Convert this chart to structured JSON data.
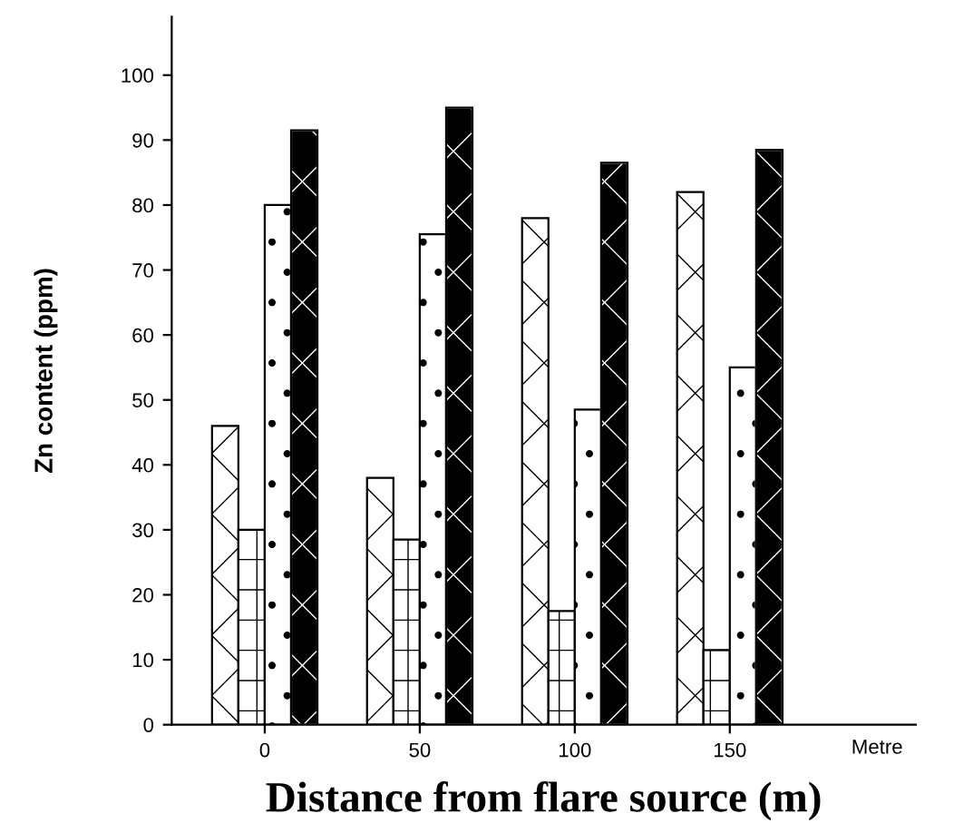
{
  "chart_data": {
    "type": "bar",
    "xlabel": "Distance from flare source (m)",
    "ylabel": "Zn content (ppm)",
    "categories": [
      "0",
      "50",
      "100",
      "150"
    ],
    "series": [
      {
        "color": "#ffffff",
        "values": [
          46,
          38,
          78,
          82
        ]
      },
      {
        "color": "#ffffff",
        "values": [
          30,
          28.5,
          17.5,
          11.5
        ]
      },
      {
        "color": "#ffffff",
        "values": [
          80,
          75.5,
          48.5,
          55
        ]
      },
      {
        "color": "#000000",
        "values": [
          91.5,
          95,
          86.5,
          88.5
        ]
      }
    ],
    "ylim": [
      0,
      109
    ],
    "yticks": [
      0,
      10,
      20,
      30,
      40,
      50,
      60,
      70,
      80,
      90,
      100
    ],
    "annotations": [
      "Metre"
    ],
    "grid": false,
    "legend": false
  }
}
